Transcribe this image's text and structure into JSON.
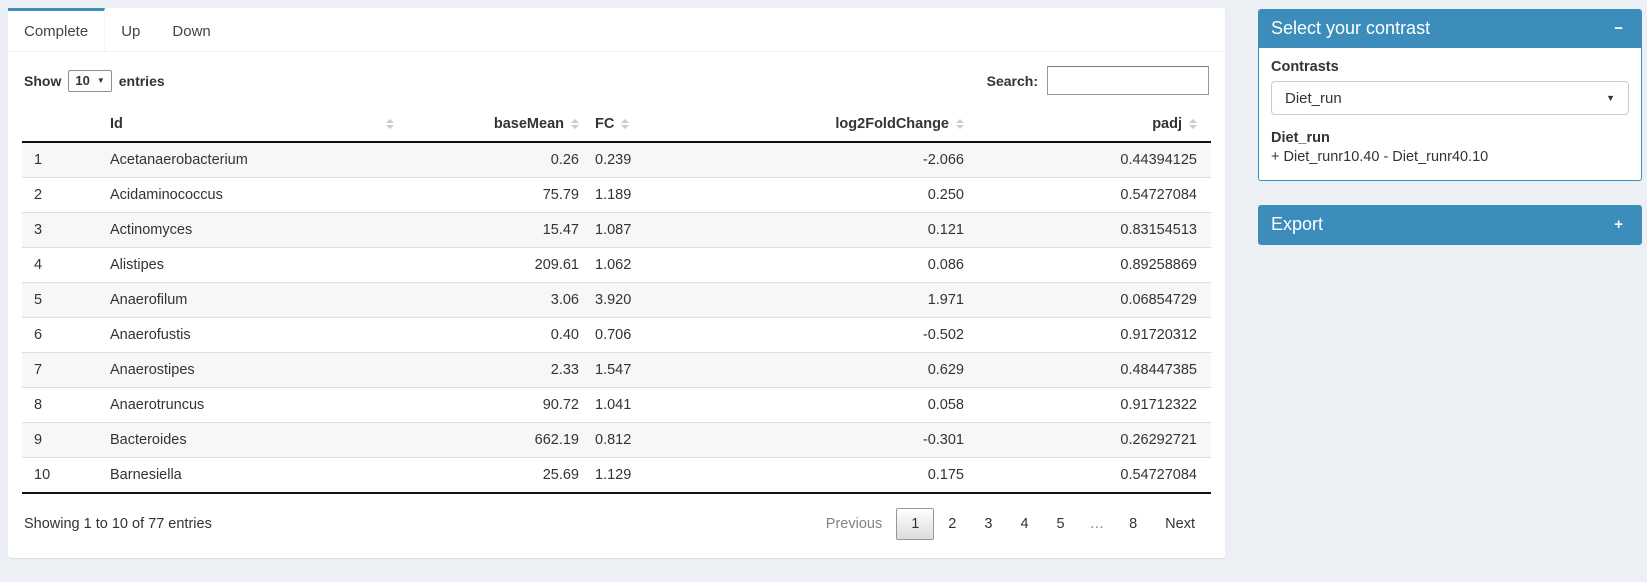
{
  "colors": {
    "accent": "#3c8dbc",
    "page_bg": "#ecf0f5"
  },
  "tabs": {
    "complete": "Complete",
    "up": "Up",
    "down": "Down"
  },
  "table_controls": {
    "show_label": "Show",
    "page_length": "10",
    "entries_label": "entries",
    "search_label": "Search:",
    "search_value": ""
  },
  "table": {
    "columns": {
      "rownum": "",
      "id": "Id",
      "basemean": "baseMean",
      "fc": "FC",
      "log2foldchange": "log2FoldChange",
      "padj": "padj"
    },
    "rows": [
      [
        "1",
        "Acetanaerobacterium",
        "0.26",
        "0.239",
        "-2.066",
        "0.44394125"
      ],
      [
        "2",
        "Acidaminococcus",
        "75.79",
        "1.189",
        "0.250",
        "0.54727084"
      ],
      [
        "3",
        "Actinomyces",
        "15.47",
        "1.087",
        "0.121",
        "0.83154513"
      ],
      [
        "4",
        "Alistipes",
        "209.61",
        "1.062",
        "0.086",
        "0.89258869"
      ],
      [
        "5",
        "Anaerofilum",
        "3.06",
        "3.920",
        "1.971",
        "0.06854729"
      ],
      [
        "6",
        "Anaerofustis",
        "0.40",
        "0.706",
        "-0.502",
        "0.91720312"
      ],
      [
        "7",
        "Anaerostipes",
        "2.33",
        "1.547",
        "0.629",
        "0.48447385"
      ],
      [
        "8",
        "Anaerotruncus",
        "90.72",
        "1.041",
        "0.058",
        "0.91712322"
      ],
      [
        "9",
        "Bacteroides",
        "662.19",
        "0.812",
        "-0.301",
        "0.26292721"
      ],
      [
        "10",
        "Barnesiella",
        "25.69",
        "1.129",
        "0.175",
        "0.54727084"
      ]
    ],
    "info": "Showing 1 to 10 of 77 entries"
  },
  "pagination": {
    "previous": "Previous",
    "pages": [
      "1",
      "2",
      "3",
      "4",
      "5",
      "…",
      "8"
    ],
    "current_page": "1",
    "next": "Next"
  },
  "contrast_box": {
    "title": "Select your contrast",
    "contrasts_label": "Contrasts",
    "selected_contrast": "Diet_run",
    "contrast_name": "Diet_run",
    "contrast_formula": "+ Diet_runr10.40 - Diet_runr40.10"
  },
  "export_box": {
    "title": "Export"
  },
  "icons": {
    "collapse": "−",
    "expand": "+",
    "caret_down": "▼",
    "caret_small": "▼"
  }
}
